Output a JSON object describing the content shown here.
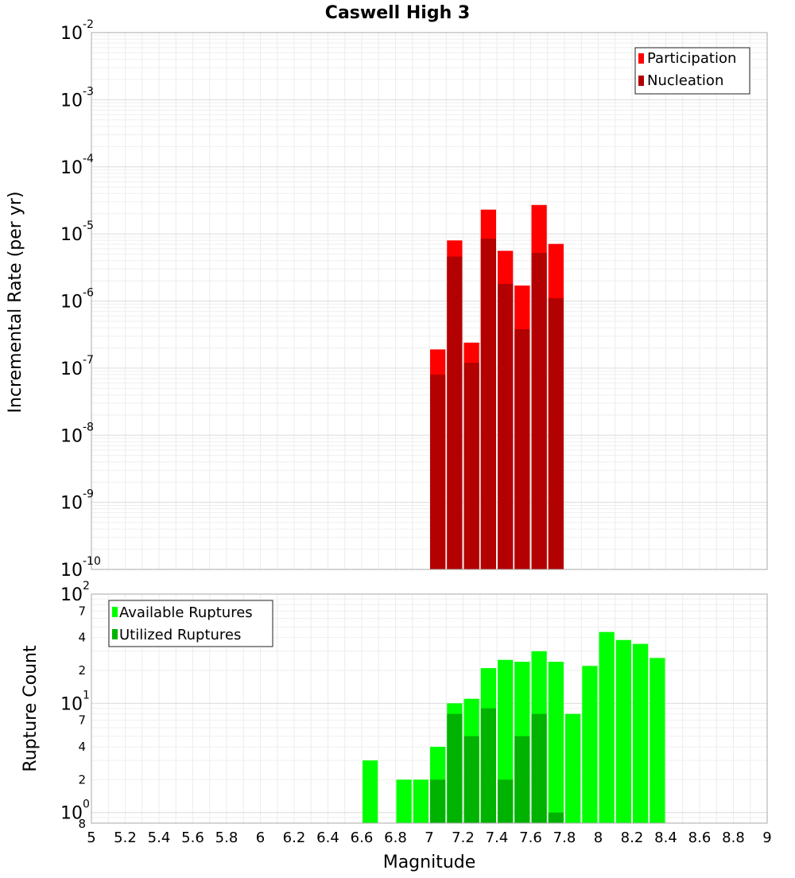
{
  "chart_data": {
    "title": "Caswell High 3",
    "xlabel": "Magnitude",
    "xlim": [
      5,
      9
    ],
    "x_ticks": [
      "5",
      "5.2",
      "5.4",
      "5.6",
      "5.8",
      "6",
      "6.2",
      "6.4",
      "6.6",
      "6.8",
      "7",
      "7.2",
      "7.4",
      "7.6",
      "7.8",
      "8",
      "8.2",
      "8.4",
      "8.6",
      "8.8",
      "9"
    ],
    "bin_width": 0.1,
    "grid": true,
    "panels": [
      {
        "type": "bar",
        "name": "rate",
        "ylabel": "Incremental Rate (per yr)",
        "yscale": "log",
        "ylim": [
          1e-10,
          0.01
        ],
        "y_ticks": [
          {
            "base": "10",
            "exp": "-10"
          },
          {
            "base": "10",
            "exp": "-9"
          },
          {
            "base": "10",
            "exp": "-8"
          },
          {
            "base": "10",
            "exp": "-7"
          },
          {
            "base": "10",
            "exp": "-6"
          },
          {
            "base": "10",
            "exp": "-5"
          },
          {
            "base": "10",
            "exp": "-4"
          },
          {
            "base": "10",
            "exp": "-3"
          },
          {
            "base": "10",
            "exp": "-2"
          }
        ],
        "legend_position": "top-right",
        "series": [
          {
            "name": "Participation",
            "color": "#ff0000",
            "x": [
              7.05,
              7.15,
              7.25,
              7.35,
              7.45,
              7.55,
              7.65,
              7.75
            ],
            "values": [
              1.9e-07,
              8e-06,
              2.4e-07,
              2.3e-05,
              5.6e-06,
              1.7e-06,
              2.7e-05,
              7.1e-06
            ]
          },
          {
            "name": "Nucleation",
            "color": "#b30000",
            "x": [
              7.05,
              7.15,
              7.25,
              7.35,
              7.45,
              7.55,
              7.65,
              7.75
            ],
            "values": [
              8e-08,
              4.6e-06,
              1.2e-07,
              8.5e-06,
              1.8e-06,
              3.8e-07,
              5.2e-06,
              1.1e-06
            ]
          }
        ]
      },
      {
        "type": "bar",
        "name": "count",
        "ylabel": "Rupture Count",
        "yscale": "log",
        "ylim": [
          0.8,
          100
        ],
        "y_ticks": [
          {
            "base": "10",
            "exp": "0"
          },
          {
            "base": "10",
            "exp": "1"
          },
          {
            "base": "10",
            "exp": "2"
          }
        ],
        "y_minor_labels": [
          "8",
          "2",
          "4",
          "7",
          "2",
          "4",
          "7"
        ],
        "legend_position": "top-left",
        "series": [
          {
            "name": "Available Ruptures",
            "color": "#00ff00",
            "x": [
              6.65,
              6.85,
              6.95,
              7.05,
              7.15,
              7.25,
              7.35,
              7.45,
              7.55,
              7.65,
              7.75,
              7.85,
              7.95,
              8.05,
              8.15,
              8.25,
              8.35
            ],
            "values": [
              3,
              2,
              2,
              4,
              10,
              11,
              21,
              25,
              24,
              30,
              24,
              8,
              22,
              45,
              38,
              35,
              26
            ]
          },
          {
            "name": "Utilized Ruptures",
            "color": "#00b300",
            "x": [
              7.05,
              7.15,
              7.25,
              7.35,
              7.45,
              7.55,
              7.65,
              7.75
            ],
            "values": [
              2,
              8,
              5,
              9,
              2,
              5,
              8,
              1
            ]
          }
        ]
      }
    ]
  }
}
